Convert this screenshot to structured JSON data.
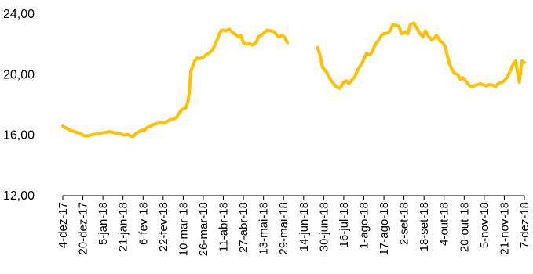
{
  "chart_data": {
    "type": "line",
    "title": "",
    "xlabel": "",
    "ylabel": "",
    "ylim": [
      12,
      24
    ],
    "yticks": [
      "12,00",
      "16,00",
      "20,00",
      "24,00"
    ],
    "ytick_values": [
      12,
      16,
      20,
      24
    ],
    "grid": false,
    "legend": "none",
    "colors": {
      "line": "#FFC000",
      "axis": "#000000"
    },
    "xlim": [
      "2017-12-04",
      "2018-12-07"
    ],
    "xticks": [
      {
        "label": "4-dez-17",
        "date": "2017-12-04"
      },
      {
        "label": "20-dez-17",
        "date": "2017-12-20"
      },
      {
        "label": "5-jan-18",
        "date": "2018-01-05"
      },
      {
        "label": "21-jan-18",
        "date": "2018-01-21"
      },
      {
        "label": "6-fev-18",
        "date": "2018-02-06"
      },
      {
        "label": "22-fev-18",
        "date": "2018-02-22"
      },
      {
        "label": "10-mar-18",
        "date": "2018-03-10"
      },
      {
        "label": "26-mar-18",
        "date": "2018-03-26"
      },
      {
        "label": "11-abr-18",
        "date": "2018-04-11"
      },
      {
        "label": "27-abr-18",
        "date": "2018-04-27"
      },
      {
        "label": "13-mai-18",
        "date": "2018-05-13"
      },
      {
        "label": "29-mai-18",
        "date": "2018-05-29"
      },
      {
        "label": "14-jun-18",
        "date": "2018-06-14"
      },
      {
        "label": "30-jun-18",
        "date": "2018-06-30"
      },
      {
        "label": "16-jul-18",
        "date": "2018-07-16"
      },
      {
        "label": "1-ago-18",
        "date": "2018-08-01"
      },
      {
        "label": "17-ago-18",
        "date": "2018-08-17"
      },
      {
        "label": "2-set-18",
        "date": "2018-09-02"
      },
      {
        "label": "18-set-18",
        "date": "2018-09-18"
      },
      {
        "label": "4-out-18",
        "date": "2018-10-04"
      },
      {
        "label": "20-out-18",
        "date": "2018-10-20"
      },
      {
        "label": "5-nov-18",
        "date": "2018-11-05"
      },
      {
        "label": "21-nov-18",
        "date": "2018-11-21"
      },
      {
        "label": "7-dez-18",
        "date": "2018-12-07"
      }
    ],
    "series": [
      {
        "segments": [
          [
            [
              "2017-12-04",
              16.6
            ],
            [
              "2017-12-06",
              16.5
            ],
            [
              "2017-12-08",
              16.4
            ],
            [
              "2017-12-11",
              16.3
            ],
            [
              "2017-12-13",
              16.25
            ],
            [
              "2017-12-15",
              16.2
            ],
            [
              "2017-12-18",
              16.1
            ],
            [
              "2017-12-20",
              16.0
            ],
            [
              "2017-12-22",
              15.95
            ],
            [
              "2017-12-26",
              16.0
            ],
            [
              "2017-12-28",
              16.05
            ],
            [
              "2018-01-02",
              16.1
            ],
            [
              "2018-01-04",
              16.15
            ],
            [
              "2018-01-08",
              16.2
            ],
            [
              "2018-01-10",
              16.25
            ],
            [
              "2018-01-12",
              16.2
            ],
            [
              "2018-01-15",
              16.15
            ],
            [
              "2018-01-17",
              16.1
            ],
            [
              "2018-01-19",
              16.1
            ],
            [
              "2018-01-22",
              16.0
            ],
            [
              "2018-01-24",
              16.05
            ],
            [
              "2018-01-26",
              16.0
            ],
            [
              "2018-01-29",
              15.9
            ],
            [
              "2018-01-31",
              16.1
            ],
            [
              "2018-02-02",
              16.2
            ],
            [
              "2018-02-05",
              16.35
            ],
            [
              "2018-02-07",
              16.3
            ],
            [
              "2018-02-09",
              16.5
            ],
            [
              "2018-02-12",
              16.6
            ],
            [
              "2018-02-14",
              16.7
            ],
            [
              "2018-02-16",
              16.75
            ],
            [
              "2018-02-19",
              16.8
            ],
            [
              "2018-02-21",
              16.85
            ],
            [
              "2018-02-23",
              16.8
            ],
            [
              "2018-02-26",
              16.95
            ],
            [
              "2018-02-28",
              17.05
            ],
            [
              "2018-03-02",
              17.05
            ],
            [
              "2018-03-05",
              17.2
            ],
            [
              "2018-03-07",
              17.5
            ],
            [
              "2018-03-09",
              17.7
            ],
            [
              "2018-03-12",
              17.8
            ],
            [
              "2018-03-14",
              18.3
            ],
            [
              "2018-03-15",
              19.0
            ],
            [
              "2018-03-16",
              20.2
            ],
            [
              "2018-03-19",
              20.9
            ],
            [
              "2018-03-21",
              21.1
            ],
            [
              "2018-03-23",
              21.05
            ],
            [
              "2018-03-26",
              21.15
            ],
            [
              "2018-03-28",
              21.3
            ],
            [
              "2018-03-30",
              21.4
            ],
            [
              "2018-04-02",
              21.6
            ],
            [
              "2018-04-04",
              21.9
            ],
            [
              "2018-04-06",
              22.3
            ],
            [
              "2018-04-09",
              22.9
            ],
            [
              "2018-04-11",
              22.95
            ],
            [
              "2018-04-13",
              22.9
            ],
            [
              "2018-04-16",
              23.0
            ],
            [
              "2018-04-18",
              22.8
            ],
            [
              "2018-04-20",
              22.7
            ],
            [
              "2018-04-23",
              22.5
            ],
            [
              "2018-04-25",
              22.6
            ],
            [
              "2018-04-27",
              22.1
            ],
            [
              "2018-04-30",
              22.0
            ],
            [
              "2018-05-02",
              22.05
            ],
            [
              "2018-05-04",
              21.95
            ],
            [
              "2018-05-07",
              22.1
            ],
            [
              "2018-05-09",
              22.5
            ],
            [
              "2018-05-11",
              22.6
            ],
            [
              "2018-05-14",
              22.8
            ],
            [
              "2018-05-16",
              22.95
            ],
            [
              "2018-05-18",
              22.9
            ],
            [
              "2018-05-21",
              22.85
            ],
            [
              "2018-05-23",
              22.7
            ],
            [
              "2018-05-25",
              22.5
            ],
            [
              "2018-05-28",
              22.6
            ],
            [
              "2018-05-30",
              22.45
            ],
            [
              "2018-06-01",
              22.1
            ]
          ],
          [
            [
              "2018-06-25",
              21.8
            ],
            [
              "2018-06-27",
              21.3
            ],
            [
              "2018-06-29",
              20.5
            ],
            [
              "2018-07-02",
              20.2
            ],
            [
              "2018-07-04",
              19.9
            ],
            [
              "2018-07-06",
              19.6
            ],
            [
              "2018-07-09",
              19.3
            ],
            [
              "2018-07-11",
              19.15
            ],
            [
              "2018-07-13",
              19.1
            ],
            [
              "2018-07-16",
              19.5
            ],
            [
              "2018-07-18",
              19.6
            ],
            [
              "2018-07-20",
              19.4
            ],
            [
              "2018-07-23",
              19.7
            ],
            [
              "2018-07-25",
              19.9
            ],
            [
              "2018-07-27",
              20.3
            ],
            [
              "2018-07-30",
              20.7
            ],
            [
              "2018-08-01",
              21.0
            ],
            [
              "2018-08-03",
              21.4
            ],
            [
              "2018-08-06",
              21.3
            ],
            [
              "2018-08-08",
              21.6
            ],
            [
              "2018-08-10",
              22.0
            ],
            [
              "2018-08-13",
              22.3
            ],
            [
              "2018-08-15",
              22.6
            ],
            [
              "2018-08-17",
              22.7
            ],
            [
              "2018-08-20",
              22.75
            ],
            [
              "2018-08-22",
              22.9
            ],
            [
              "2018-08-24",
              23.3
            ],
            [
              "2018-08-27",
              23.25
            ],
            [
              "2018-08-29",
              23.2
            ],
            [
              "2018-08-31",
              22.7
            ],
            [
              "2018-09-03",
              22.8
            ],
            [
              "2018-09-05",
              22.7
            ],
            [
              "2018-09-07",
              23.3
            ],
            [
              "2018-09-10",
              23.4
            ],
            [
              "2018-09-12",
              23.1
            ],
            [
              "2018-09-14",
              22.8
            ],
            [
              "2018-09-17",
              22.5
            ],
            [
              "2018-09-19",
              22.9
            ],
            [
              "2018-09-21",
              22.6
            ],
            [
              "2018-09-24",
              22.3
            ],
            [
              "2018-09-26",
              22.4
            ],
            [
              "2018-09-28",
              22.6
            ],
            [
              "2018-10-01",
              22.2
            ],
            [
              "2018-10-03",
              22.1
            ],
            [
              "2018-10-05",
              21.8
            ],
            [
              "2018-10-08",
              20.8
            ],
            [
              "2018-10-10",
              20.4
            ],
            [
              "2018-10-12",
              20.1
            ],
            [
              "2018-10-15",
              20.0
            ],
            [
              "2018-10-17",
              19.7
            ],
            [
              "2018-10-19",
              19.8
            ],
            [
              "2018-10-22",
              19.5
            ],
            [
              "2018-10-24",
              19.3
            ],
            [
              "2018-10-26",
              19.2
            ],
            [
              "2018-10-29",
              19.3
            ],
            [
              "2018-10-31",
              19.35
            ],
            [
              "2018-11-02",
              19.4
            ],
            [
              "2018-11-05",
              19.3
            ],
            [
              "2018-11-07",
              19.25
            ],
            [
              "2018-11-09",
              19.35
            ],
            [
              "2018-11-12",
              19.3
            ],
            [
              "2018-11-14",
              19.2
            ],
            [
              "2018-11-16",
              19.4
            ],
            [
              "2018-11-19",
              19.5
            ],
            [
              "2018-11-21",
              19.6
            ],
            [
              "2018-11-23",
              19.8
            ],
            [
              "2018-11-26",
              20.3
            ],
            [
              "2018-11-28",
              20.7
            ],
            [
              "2018-11-30",
              20.9
            ],
            [
              "2018-12-03",
              19.5
            ],
            [
              "2018-12-05",
              20.9
            ],
            [
              "2018-12-07",
              20.8
            ]
          ]
        ]
      }
    ]
  }
}
